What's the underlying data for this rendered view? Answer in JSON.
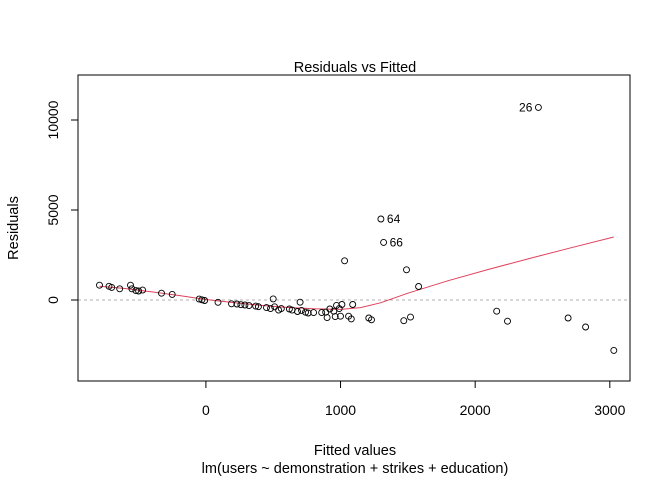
{
  "chart_data": {
    "type": "scatter",
    "title": "Residuals vs Fitted",
    "xlabel": "Fitted values",
    "subtitle": "lm(users ~ demonstration + strikes + education)",
    "ylabel": "Residuals",
    "xlim": [
      -950,
      3150
    ],
    "ylim": [
      -4500,
      12500
    ],
    "xticks": [
      0,
      1000,
      2000,
      3000
    ],
    "yticks": [
      0,
      5000,
      10000
    ],
    "grid": false,
    "legend": "none",
    "colors": {
      "points": "#000000",
      "smooth": "#e0405a",
      "zero_line": "#b0b0b0"
    },
    "points": [
      {
        "x": -790,
        "y": 820
      },
      {
        "x": -720,
        "y": 760
      },
      {
        "x": -700,
        "y": 700
      },
      {
        "x": -640,
        "y": 620
      },
      {
        "x": -560,
        "y": 820
      },
      {
        "x": -550,
        "y": 620
      },
      {
        "x": -520,
        "y": 520
      },
      {
        "x": -500,
        "y": 500
      },
      {
        "x": -470,
        "y": 550
      },
      {
        "x": -330,
        "y": 380
      },
      {
        "x": -250,
        "y": 310
      },
      {
        "x": -50,
        "y": 50
      },
      {
        "x": -30,
        "y": 10
      },
      {
        "x": -10,
        "y": -30
      },
      {
        "x": 90,
        "y": -130
      },
      {
        "x": 190,
        "y": -210
      },
      {
        "x": 230,
        "y": -220
      },
      {
        "x": 260,
        "y": -260
      },
      {
        "x": 290,
        "y": -280
      },
      {
        "x": 320,
        "y": -310
      },
      {
        "x": 370,
        "y": -340
      },
      {
        "x": 390,
        "y": -370
      },
      {
        "x": 450,
        "y": -420
      },
      {
        "x": 480,
        "y": -480
      },
      {
        "x": 500,
        "y": 60
      },
      {
        "x": 510,
        "y": -380
      },
      {
        "x": 540,
        "y": -560
      },
      {
        "x": 560,
        "y": -480
      },
      {
        "x": 620,
        "y": -500
      },
      {
        "x": 640,
        "y": -560
      },
      {
        "x": 680,
        "y": -640
      },
      {
        "x": 700,
        "y": -120
      },
      {
        "x": 710,
        "y": -580
      },
      {
        "x": 740,
        "y": -680
      },
      {
        "x": 760,
        "y": -720
      },
      {
        "x": 800,
        "y": -700
      },
      {
        "x": 860,
        "y": -700
      },
      {
        "x": 890,
        "y": -680
      },
      {
        "x": 900,
        "y": -980
      },
      {
        "x": 920,
        "y": -500
      },
      {
        "x": 950,
        "y": -620
      },
      {
        "x": 960,
        "y": -920
      },
      {
        "x": 970,
        "y": -300
      },
      {
        "x": 990,
        "y": -480
      },
      {
        "x": 1000,
        "y": -900
      },
      {
        "x": 1010,
        "y": -250
      },
      {
        "x": 1030,
        "y": 2180
      },
      {
        "x": 1060,
        "y": -900
      },
      {
        "x": 1080,
        "y": -1050
      },
      {
        "x": 1090,
        "y": -250
      },
      {
        "x": 1210,
        "y": -1000
      },
      {
        "x": 1230,
        "y": -1100
      },
      {
        "x": 1300,
        "y": 4500,
        "label": "64"
      },
      {
        "x": 1320,
        "y": 3200,
        "label": "66"
      },
      {
        "x": 1470,
        "y": -1150
      },
      {
        "x": 1490,
        "y": 1680
      },
      {
        "x": 1520,
        "y": -950
      },
      {
        "x": 1580,
        "y": 750
      },
      {
        "x": 2160,
        "y": -620
      },
      {
        "x": 2240,
        "y": -1180
      },
      {
        "x": 2470,
        "y": 10700,
        "label": "26"
      },
      {
        "x": 2690,
        "y": -1000
      },
      {
        "x": 2820,
        "y": -1500
      },
      {
        "x": 3030,
        "y": -2800
      }
    ],
    "smooth_line": [
      {
        "x": -790,
        "y": 760
      },
      {
        "x": -600,
        "y": 640
      },
      {
        "x": -400,
        "y": 450
      },
      {
        "x": -200,
        "y": 250
      },
      {
        "x": 0,
        "y": 30
      },
      {
        "x": 200,
        "y": -140
      },
      {
        "x": 400,
        "y": -290
      },
      {
        "x": 600,
        "y": -410
      },
      {
        "x": 800,
        "y": -490
      },
      {
        "x": 1000,
        "y": -520
      },
      {
        "x": 1150,
        "y": -420
      },
      {
        "x": 1300,
        "y": -150
      },
      {
        "x": 1500,
        "y": 380
      },
      {
        "x": 1800,
        "y": 1070
      },
      {
        "x": 2100,
        "y": 1700
      },
      {
        "x": 2400,
        "y": 2300
      },
      {
        "x": 2700,
        "y": 2880
      },
      {
        "x": 3030,
        "y": 3500
      }
    ]
  }
}
